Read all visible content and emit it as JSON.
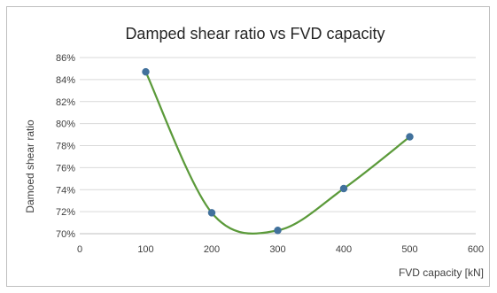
{
  "chart_data": {
    "type": "scatter",
    "title": "Damped shear ratio vs FVD capacity",
    "xlabel": "FVD capacity [kN]",
    "ylabel": "Damoed shear ratio",
    "xlim": [
      0,
      600
    ],
    "ylim": [
      0.7,
      0.86
    ],
    "x_ticks": [
      0,
      100,
      200,
      300,
      400,
      500,
      600
    ],
    "y_ticks": [
      0.7,
      0.72,
      0.74,
      0.76,
      0.78,
      0.8,
      0.82,
      0.84,
      0.86
    ],
    "y_tick_labels": [
      "70%",
      "72%",
      "74%",
      "76%",
      "78%",
      "80%",
      "82%",
      "84%",
      "86%"
    ],
    "grid": "horizontal",
    "legend": "none",
    "series": [
      {
        "x": [
          100,
          200,
          300,
          400,
          500
        ],
        "y": [
          0.847,
          0.719,
          0.703,
          0.741,
          0.788
        ],
        "line_style": "smooth",
        "line_color": "#5b9a3a",
        "marker_color": "#41719c"
      }
    ]
  }
}
